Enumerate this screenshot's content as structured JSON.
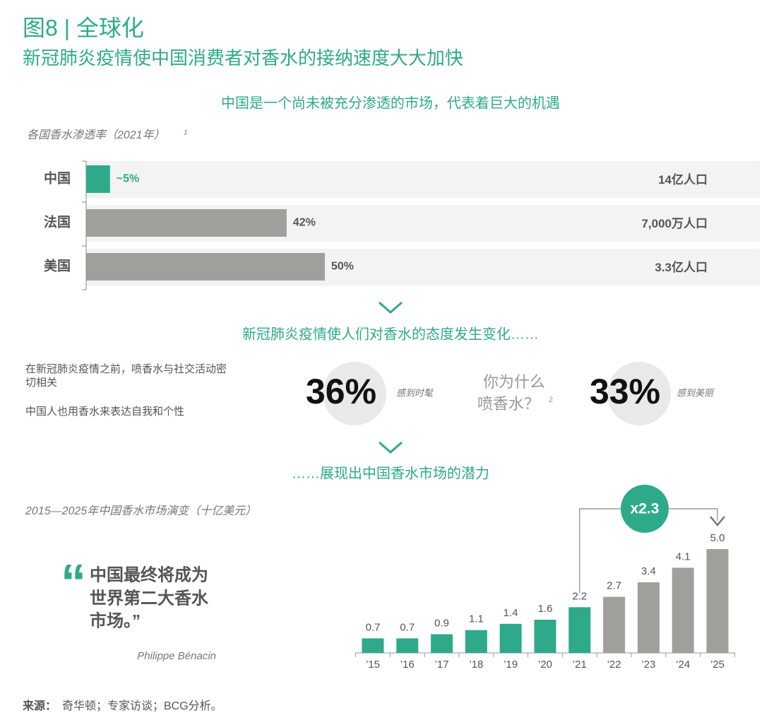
{
  "header": {
    "title": "图8 | 全球化",
    "subtitle": "新冠肺炎疫情使中国消费者对香水的接纳速度大大加快"
  },
  "sections": [
    "中国是一个尚未被充分渗透的市场，代表着巨大的机遇",
    "新冠肺炎疫情使人们对香水的态度发生变化……",
    "……展现出中国香水市场的潜力"
  ],
  "chart_data": [
    {
      "type": "bar",
      "orientation": "horizontal",
      "title": "各国香水渗透率（2021年）",
      "title_note": "1",
      "categories": [
        "中国",
        "法国",
        "美国"
      ],
      "values": [
        5,
        42,
        50
      ],
      "value_labels": [
        "~5%",
        "42%",
        "50%"
      ],
      "colors": [
        "#2eaa8a",
        "#a09f9b",
        "#a09f9b"
      ],
      "annotations": [
        "14亿人口",
        "7,000万人口",
        "3.3亿人口"
      ]
    },
    {
      "type": "bar",
      "orientation": "vertical",
      "title": "2015—2025年中国香水市场演变（十亿美元）",
      "categories": [
        "’15",
        "’16",
        "’17",
        "’18",
        "’19",
        "’20",
        "’21",
        "’22",
        "’23",
        "’24",
        "’25"
      ],
      "values": [
        0.7,
        0.7,
        0.9,
        1.1,
        1.4,
        1.6,
        2.2,
        2.7,
        3.4,
        4.1,
        5.0
      ],
      "value_labels": [
        "0.7",
        "0.7",
        "0.9",
        "1.1",
        "1.4",
        "1.6",
        "2.2",
        "2.7",
        "3.4",
        "4.1",
        "5.0"
      ],
      "colors": [
        "#2eaa8a",
        "#2eaa8a",
        "#2eaa8a",
        "#2eaa8a",
        "#2eaa8a",
        "#2eaa8a",
        "#2eaa8a",
        "#a09f9b",
        "#a09f9b",
        "#a09f9b",
        "#a09f9b"
      ],
      "annotation": "x2.3"
    }
  ],
  "attitudes": {
    "notes": [
      "在新冠肺炎疫情之前，喷香水与社交活动密",
      "切相关",
      "中国人也用香水来表达自我和个性"
    ],
    "question": [
      "你为什么",
      "喷香水？"
    ],
    "question_note": "2",
    "stats": [
      {
        "value": "36%",
        "label": "感到时髦"
      },
      {
        "value": "33%",
        "label": "感到美丽"
      }
    ]
  },
  "quote": {
    "mark": "“",
    "lines": [
      "中国最终将成为",
      "世界第二大香水",
      "市场。”"
    ],
    "author": "Philippe Bénacin"
  },
  "source": {
    "label": "来源：",
    "text": "奇华顿；专家访谈；BCG分析。"
  }
}
